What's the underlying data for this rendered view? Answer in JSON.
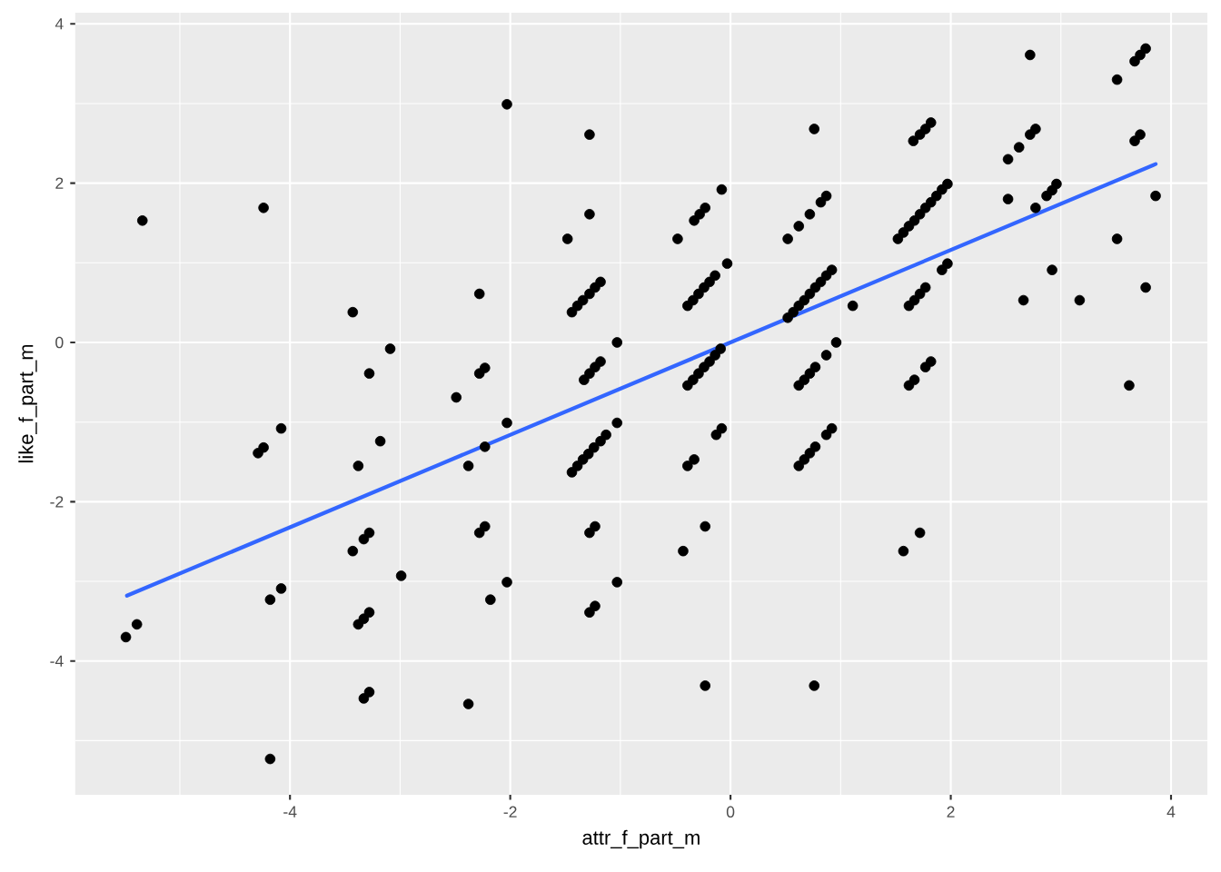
{
  "chart_data": {
    "type": "scatter",
    "xlabel": "attr_f_part_m",
    "ylabel": "like_f_part_m",
    "xlim": [
      -5.95,
      4.33
    ],
    "ylim": [
      -5.68,
      4.14
    ],
    "xticks": [
      -4,
      -2,
      0,
      2,
      4
    ],
    "yticks": [
      -4,
      -2,
      0,
      2,
      4
    ],
    "grid": true,
    "series": [
      {
        "color": "#000000",
        "marker": "circle",
        "x": [
          -5.34,
          -4.24,
          -3.43,
          -3.09,
          -3.28,
          -2.49,
          -4.29,
          -4.24,
          -4.08,
          -3.18,
          -3.38,
          -3.43,
          -3.33,
          -3.28,
          -2.99,
          -4.18,
          -4.08,
          -3.38,
          -3.33,
          -3.28,
          -5.49,
          -5.39,
          -3.33,
          -3.28,
          -4.18,
          -2.03,
          -1.28,
          0.76,
          -0.08,
          -0.23,
          -0.28,
          -0.33,
          -0.48,
          -1.28,
          -1.48,
          0.87,
          0.82,
          0.72,
          0.62,
          0.52,
          -2.28,
          -1.44,
          -1.39,
          -1.34,
          -1.28,
          -1.23,
          -1.18,
          -0.39,
          -0.34,
          -0.29,
          -0.24,
          -0.19,
          -0.14,
          -0.03,
          0.52,
          0.57,
          0.62,
          0.67,
          0.72,
          0.77,
          0.82,
          0.87,
          0.92,
          -1.03,
          -1.33,
          -1.28,
          -1.23,
          -1.18,
          -2.28,
          -2.23,
          -0.39,
          -0.34,
          -0.29,
          -0.24,
          -0.19,
          -0.14,
          -0.09,
          0.62,
          0.67,
          0.72,
          0.77,
          0.87,
          0.96,
          2.72,
          3.77,
          3.72,
          3.67,
          3.51,
          1.82,
          1.77,
          1.72,
          1.66,
          2.77,
          2.72,
          2.62,
          2.52,
          3.72,
          3.67,
          1.52,
          1.57,
          1.62,
          1.67,
          1.72,
          1.77,
          1.82,
          1.87,
          1.92,
          1.97,
          2.52,
          2.96,
          2.92,
          2.87,
          2.77,
          3.86,
          3.51,
          1.97,
          1.92,
          2.92,
          1.77,
          1.72,
          1.67,
          1.62,
          2.66,
          3.17,
          3.77,
          1.11,
          1.82,
          1.77,
          1.67,
          1.62,
          3.62,
          -2.03,
          -2.23,
          -2.38,
          -1.44,
          -1.39,
          -1.34,
          -1.29,
          -1.24,
          -1.18,
          -1.13,
          -1.03,
          -0.39,
          -0.33,
          -0.13,
          -0.08,
          0.62,
          0.67,
          0.72,
          0.77,
          0.87,
          0.92,
          -2.28,
          -2.23,
          -1.28,
          -1.23,
          -0.23,
          -0.43,
          -2.03,
          -2.18,
          -1.03,
          -1.28,
          -1.23,
          -2.38,
          -0.23,
          0.76,
          1.72,
          1.57
        ],
        "values": [
          1.53,
          1.69,
          0.38,
          -0.08,
          -0.39,
          -0.69,
          -1.39,
          -1.32,
          -1.08,
          -1.24,
          -1.55,
          -2.62,
          -2.47,
          -2.39,
          -2.93,
          -3.23,
          -3.09,
          -3.54,
          -3.47,
          -3.39,
          -3.7,
          -3.54,
          -4.47,
          -4.39,
          -5.23,
          2.99,
          2.61,
          2.68,
          1.92,
          1.69,
          1.61,
          1.53,
          1.3,
          1.61,
          1.3,
          1.84,
          1.76,
          1.61,
          1.46,
          1.3,
          0.61,
          0.38,
          0.46,
          0.53,
          0.61,
          0.69,
          0.76,
          0.46,
          0.53,
          0.61,
          0.69,
          0.76,
          0.84,
          0.99,
          0.31,
          0.38,
          0.46,
          0.53,
          0.61,
          0.69,
          0.76,
          0.84,
          0.91,
          0.0,
          -0.47,
          -0.39,
          -0.31,
          -0.24,
          -0.39,
          -0.32,
          -0.54,
          -0.47,
          -0.39,
          -0.31,
          -0.24,
          -0.16,
          -0.08,
          -0.54,
          -0.47,
          -0.39,
          -0.31,
          -0.16,
          0.0,
          3.61,
          3.69,
          3.61,
          3.53,
          3.3,
          2.76,
          2.68,
          2.61,
          2.53,
          2.68,
          2.61,
          2.45,
          2.3,
          2.61,
          2.53,
          1.3,
          1.38,
          1.46,
          1.53,
          1.61,
          1.69,
          1.76,
          1.84,
          1.92,
          1.99,
          1.8,
          1.99,
          1.91,
          1.84,
          1.69,
          1.84,
          1.3,
          0.99,
          0.91,
          0.91,
          0.69,
          0.61,
          0.53,
          0.46,
          0.53,
          0.53,
          0.69,
          0.46,
          -0.24,
          -0.31,
          -0.47,
          -0.54,
          -0.54,
          -1.01,
          -1.31,
          -1.55,
          -1.63,
          -1.55,
          -1.47,
          -1.4,
          -1.32,
          -1.24,
          -1.16,
          -1.01,
          -1.55,
          -1.47,
          -1.16,
          -1.08,
          -1.55,
          -1.47,
          -1.39,
          -1.31,
          -1.16,
          -1.08,
          -2.39,
          -2.31,
          -2.39,
          -2.31,
          -2.31,
          -2.62,
          -3.01,
          -3.23,
          -3.01,
          -3.39,
          -3.31,
          -4.54,
          -4.31,
          -4.31,
          -2.39,
          -2.62
        ]
      },
      {
        "type": "line",
        "color": "#3366ff",
        "line_style": "solid",
        "x": [
          -5.48,
          3.86
        ],
        "values": [
          -3.18,
          2.24
        ]
      }
    ]
  }
}
